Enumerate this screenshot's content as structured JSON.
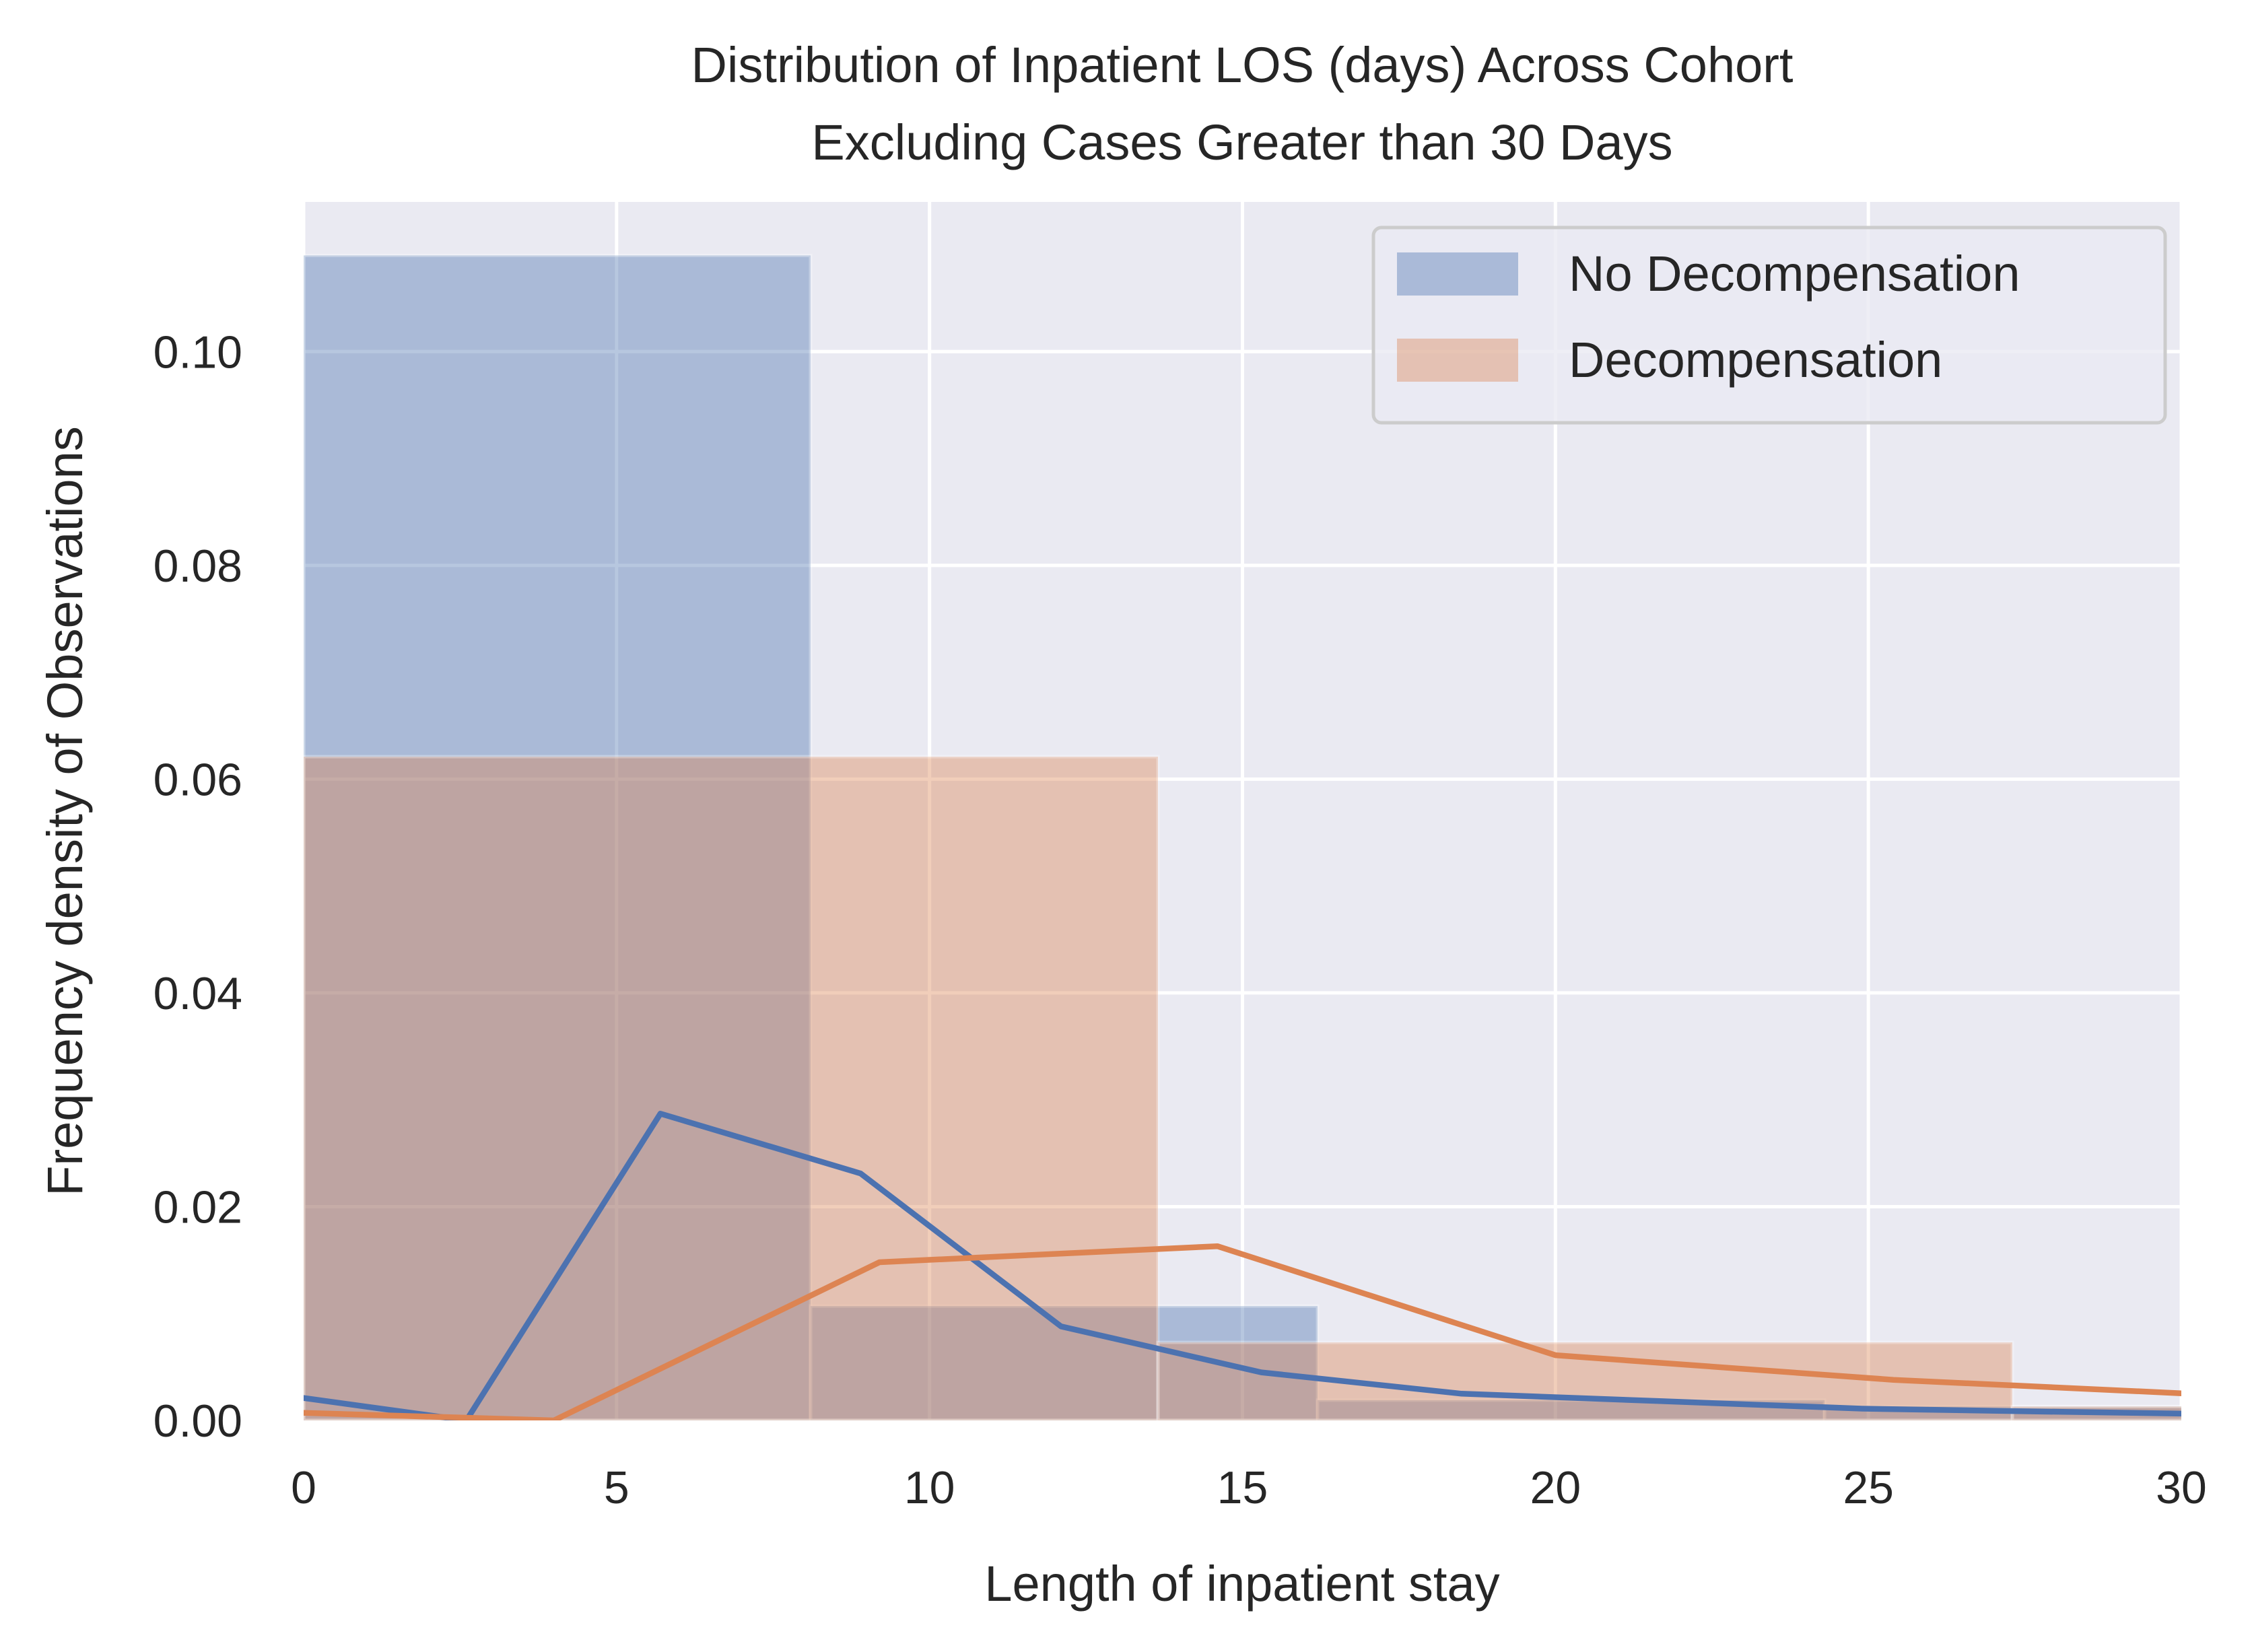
{
  "chart_data": {
    "type": "bar",
    "title": "Distribution of Inpatient LOS (days) Across Cohort",
    "subtitle": "Excluding Cases Greater than 30 Days",
    "xlabel": "Length of inpatient stay",
    "ylabel": "Frequency density of Observations",
    "xlim": [
      0,
      30
    ],
    "ylim": [
      0,
      0.114
    ],
    "x_ticks": [
      0,
      5,
      10,
      15,
      20,
      25,
      30
    ],
    "x_tick_labels": [
      "0",
      "5",
      "10",
      "15",
      "20",
      "25",
      "30"
    ],
    "y_ticks": [
      0,
      0.02,
      0.04,
      0.06,
      0.08,
      0.1
    ],
    "y_tick_labels": [
      "0.00",
      "0.02",
      "0.04",
      "0.06",
      "0.08",
      "0.10"
    ],
    "grid": true,
    "legend_position": "top-right",
    "series": [
      {
        "name": "No Decompensation",
        "kind": "histogram",
        "color": "#4C72B0",
        "bins": [
          {
            "x0": 0,
            "x1": 8.1,
            "value": 0.109
          },
          {
            "x0": 8.1,
            "x1": 16.2,
            "value": 0.0107
          },
          {
            "x0": 16.2,
            "x1": 24.3,
            "value": 0.0019
          },
          {
            "x0": 24.3,
            "x1": 32.4,
            "value": 0.0013
          }
        ]
      },
      {
        "name": "Decompensation",
        "kind": "histogram",
        "color": "#DD8452",
        "bins": [
          {
            "x0": 0,
            "x1": 13.65,
            "value": 0.0621
          },
          {
            "x0": 13.65,
            "x1": 27.3,
            "value": 0.0073
          },
          {
            "x0": 27.3,
            "x1": 40.95,
            "value": 0.0013
          }
        ]
      },
      {
        "kind": "line",
        "color": "#4C72B0",
        "points": [
          [
            -0.5,
            0.0025
          ],
          [
            2.6,
            0.0
          ],
          [
            5.7,
            0.0287
          ],
          [
            8.9,
            0.0231
          ],
          [
            12.1,
            0.0088
          ],
          [
            15.3,
            0.0045
          ],
          [
            18.5,
            0.0025
          ],
          [
            21.7,
            0.0018
          ],
          [
            24.9,
            0.0011
          ],
          [
            28.1,
            0.0008
          ],
          [
            30.5,
            0.0006
          ]
        ]
      },
      {
        "kind": "line",
        "color": "#DD8452",
        "points": [
          [
            -0.5,
            0.0008
          ],
          [
            4.0,
            0.0
          ],
          [
            9.2,
            0.0148
          ],
          [
            14.6,
            0.0163
          ],
          [
            20.0,
            0.0061
          ],
          [
            25.4,
            0.0038
          ],
          [
            30.5,
            0.0024
          ]
        ]
      }
    ]
  }
}
